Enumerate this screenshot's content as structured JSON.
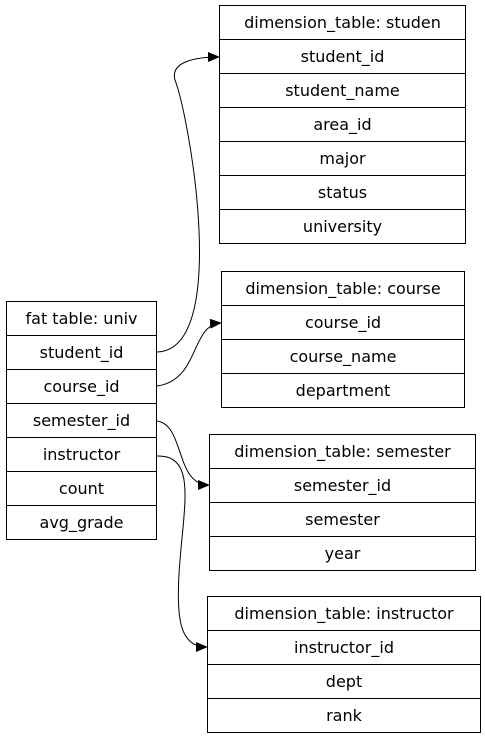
{
  "fact_table": {
    "title": "fat table: univ",
    "fields": [
      "student_id",
      "course_id",
      "semester_id",
      "instructor",
      "count",
      "avg_grade"
    ]
  },
  "student_table": {
    "title": "dimension_table: studen",
    "fields": [
      "student_id",
      "student_name",
      "area_id",
      "major",
      "status",
      "university"
    ]
  },
  "course_table": {
    "title": "dimension_table: course",
    "fields": [
      "course_id",
      "course_name",
      "department"
    ]
  },
  "semester_table": {
    "title": "dimension_table: semester",
    "fields": [
      "semester_id",
      "semester",
      "year"
    ]
  },
  "instructor_table": {
    "title": "dimension_table: instructor",
    "fields": [
      "instructor_id",
      "dept",
      "rank"
    ]
  }
}
